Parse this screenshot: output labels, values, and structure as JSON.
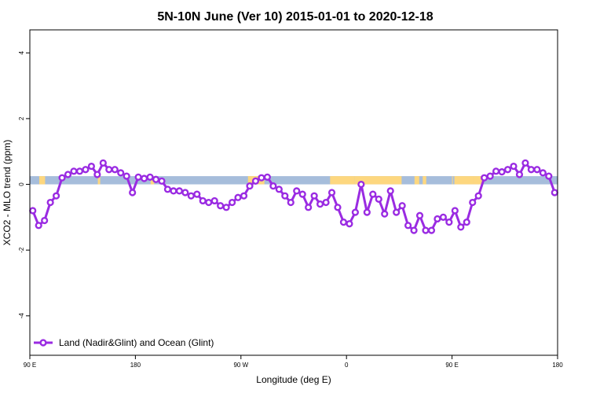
{
  "chart_data": {
    "type": "line",
    "title": "5N-10N June (Ver 10)   2015-01-01 to 2020-12-18",
    "xlabel": "Longitude (deg E)",
    "ylabel": "XCO2 - MLO trend (ppm)",
    "xlim": [
      90,
      540
    ],
    "ylim": [
      -5.2,
      4.7
    ],
    "grid": false,
    "legend_position": "bottom-left",
    "x_ticks": [
      {
        "value": 90,
        "label": "90 E"
      },
      {
        "value": 180,
        "label": "180"
      },
      {
        "value": 270,
        "label": "90 W"
      },
      {
        "value": 360,
        "label": "0"
      },
      {
        "value": 450,
        "label": "90 E"
      },
      {
        "value": 540,
        "label": "180"
      }
    ],
    "y_ticks": [
      {
        "value": -4,
        "label": "-4"
      },
      {
        "value": -2,
        "label": "-2"
      },
      {
        "value": 0,
        "label": "0"
      },
      {
        "value": 2,
        "label": "2"
      },
      {
        "value": 4,
        "label": "4"
      }
    ],
    "surface_band": {
      "y_range": [
        0,
        0.25
      ],
      "ocean_color": "#a6bddb",
      "land_color": "#fdd77f",
      "land_segments": [
        [
          98,
          103
        ],
        [
          148,
          150
        ],
        [
          193,
          196
        ],
        [
          276,
          290
        ],
        [
          346,
          367
        ],
        [
          367,
          407
        ],
        [
          418,
          422
        ],
        [
          425,
          428
        ],
        [
          450,
          450.5
        ],
        [
          452,
          468
        ],
        [
          468,
          476
        ]
      ]
    },
    "series": [
      {
        "name": "Land (Nadir&Glint) and Ocean (Glint)",
        "color": "#9a2be2",
        "x": [
          92.5,
          97.5,
          102.5,
          107.5,
          112.5,
          117.5,
          122.5,
          127.5,
          132.5,
          137.5,
          142.5,
          147.5,
          152.5,
          157.5,
          162.5,
          167.5,
          172.5,
          177.5,
          182.5,
          187.5,
          192.5,
          197.5,
          202.5,
          207.5,
          212.5,
          217.5,
          222.5,
          227.5,
          232.5,
          237.5,
          242.5,
          247.5,
          252.5,
          257.5,
          262.5,
          267.5,
          272.5,
          277.5,
          282.5,
          287.5,
          292.5,
          297.5,
          302.5,
          307.5,
          312.5,
          317.5,
          322.5,
          327.5,
          332.5,
          337.5,
          342.5,
          347.5,
          352.5,
          357.5,
          362.5,
          367.5,
          372.5,
          377.5,
          382.5,
          387.5,
          392.5,
          397.5,
          402.5,
          407.5,
          412.5,
          417.5,
          422.5,
          427.5,
          432.5,
          437.5,
          442.5,
          447.5,
          452.5,
          457.5,
          462.5,
          467.5,
          472.5,
          477.5,
          482.5,
          487.5,
          492.5,
          497.5,
          502.5,
          507.5,
          512.5,
          517.5,
          522.5,
          527.5,
          532.5,
          537.5
        ],
        "values": [
          -0.8,
          -1.25,
          -1.1,
          -0.55,
          -0.35,
          0.2,
          0.3,
          0.4,
          0.4,
          0.45,
          0.55,
          0.3,
          0.65,
          0.45,
          0.45,
          0.35,
          0.25,
          -0.25,
          0.22,
          0.18,
          0.22,
          0.15,
          0.1,
          -0.15,
          -0.2,
          -0.2,
          -0.25,
          -0.35,
          -0.3,
          -0.5,
          -0.55,
          -0.5,
          -0.65,
          -0.7,
          -0.55,
          -0.4,
          -0.35,
          -0.05,
          0.1,
          0.2,
          0.22,
          -0.05,
          -0.15,
          -0.35,
          -0.55,
          -0.2,
          -0.3,
          -0.7,
          -0.35,
          -0.6,
          -0.55,
          -0.25,
          -0.7,
          -1.15,
          -1.2,
          -0.85,
          0.0,
          -0.85,
          -0.3,
          -0.45,
          -0.9,
          -0.2,
          -0.85,
          -0.65,
          -1.25,
          -1.4,
          -0.95,
          -1.4,
          -1.4,
          -1.05,
          -1.0,
          -1.15,
          -0.8,
          -1.3,
          -1.15,
          -0.55,
          -0.35,
          0.2,
          0.25,
          0.4,
          0.38,
          0.45,
          0.55,
          0.3,
          0.65,
          0.45,
          0.45,
          0.35,
          0.25,
          -0.25
        ]
      }
    ]
  }
}
